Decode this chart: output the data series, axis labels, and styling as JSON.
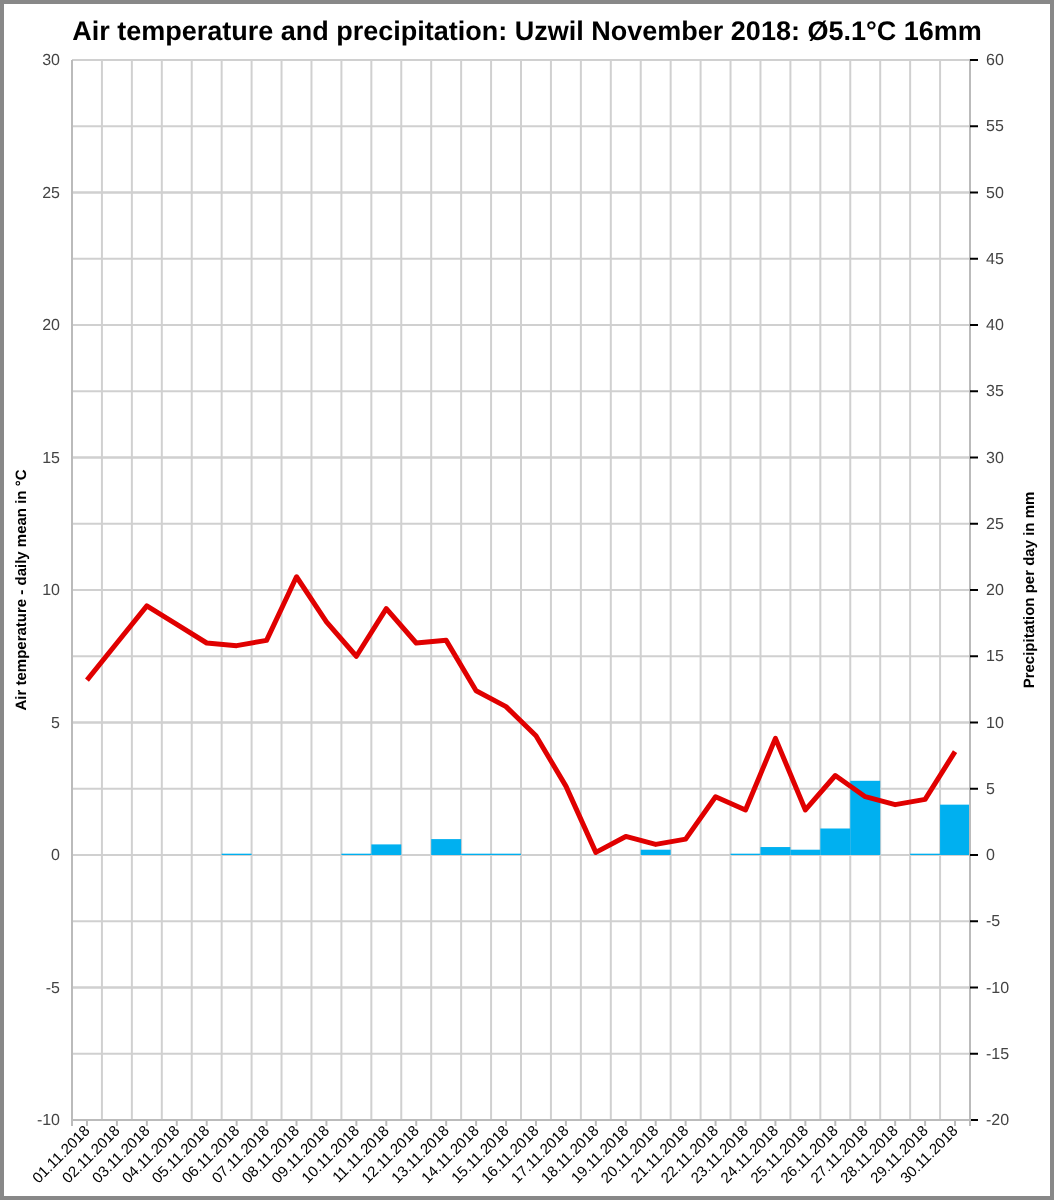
{
  "chart_data": {
    "type": "bar",
    "title": "Air temperature and precipitation: Uzwil November 2018: Ø5.1°C 16mm",
    "ylabel": "Air temperature - daily mean in °C",
    "y2label": "Precipitation per day in mm",
    "categories": [
      "01.11.2018",
      "02.11.2018",
      "03.11.2018",
      "04.11.2018",
      "05.11.2018",
      "06.11.2018",
      "07.11.2018",
      "08.11.2018",
      "09.11.2018",
      "10.11.2018",
      "11.11.2018",
      "12.11.2018",
      "13.11.2018",
      "14.11.2018",
      "15.11.2018",
      "16.11.2018",
      "17.11.2018",
      "18.11.2018",
      "19.11.2018",
      "20.11.2018",
      "21.11.2018",
      "22.11.2018",
      "23.11.2018",
      "24.11.2018",
      "25.11.2018",
      "26.11.2018",
      "27.11.2018",
      "28.11.2018",
      "29.11.2018",
      "30.11.2018"
    ],
    "series": [
      {
        "axis": "y2",
        "color": "#00b0f0",
        "values": [
          0,
          0,
          0,
          0,
          0,
          0.1,
          0,
          0,
          0,
          0.1,
          0.8,
          0,
          1.2,
          0.1,
          0.1,
          0,
          0,
          0,
          0,
          0.4,
          0,
          0,
          0.1,
          0.6,
          0.4,
          2.0,
          5.6,
          0,
          0.1,
          3.8
        ]
      },
      {
        "type": "line",
        "axis": "y",
        "color": "#e00000",
        "values": [
          6.6,
          8.0,
          9.4,
          8.7,
          8.0,
          7.9,
          8.1,
          10.5,
          8.8,
          7.5,
          9.3,
          8.0,
          8.1,
          6.2,
          5.6,
          4.5,
          2.6,
          0.1,
          0.7,
          0.4,
          0.6,
          2.2,
          1.7,
          4.4,
          1.7,
          3.0,
          2.2,
          1.9,
          2.1,
          3.9
        ]
      }
    ],
    "ylim": [
      -10,
      30
    ],
    "yticks": [
      -10,
      -5,
      0,
      5,
      10,
      15,
      20,
      25,
      30
    ],
    "y2lim": [
      -20,
      60
    ],
    "y2ticks": [
      -20,
      -15,
      -10,
      -5,
      0,
      5,
      10,
      15,
      20,
      25,
      30,
      35,
      40,
      45,
      50,
      55,
      60
    ],
    "grid": true
  }
}
